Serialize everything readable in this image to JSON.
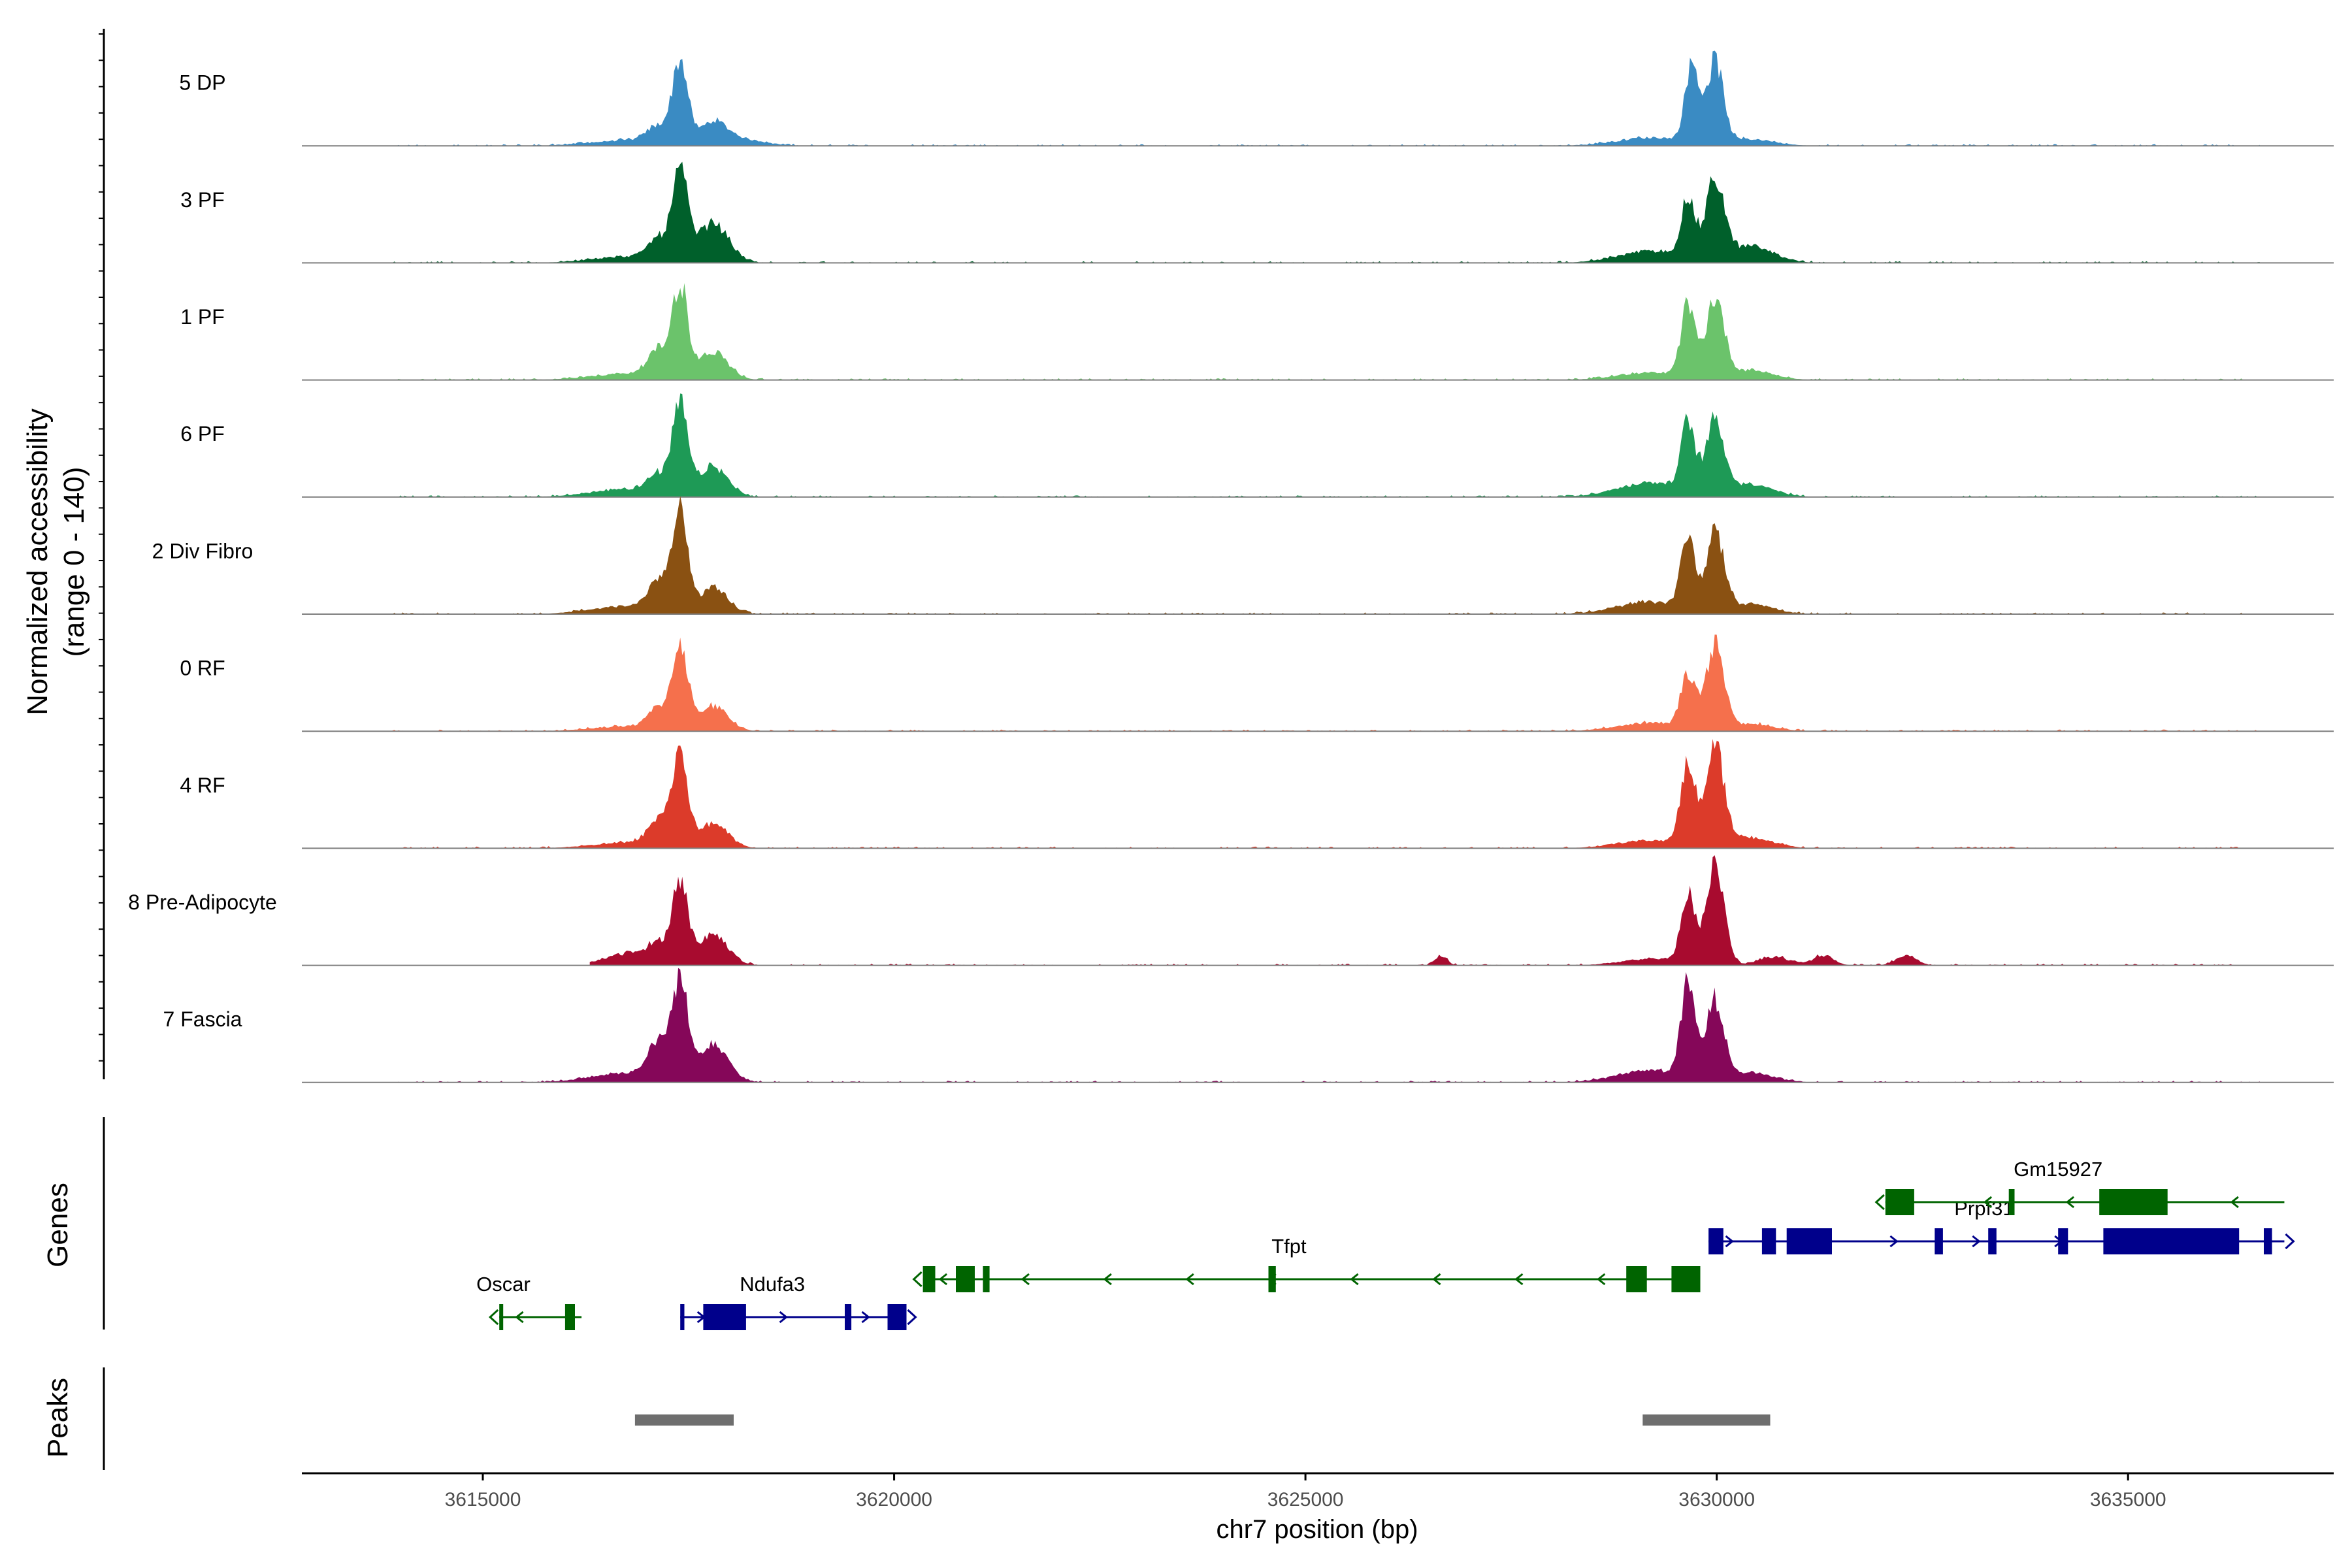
{
  "chart_data": {
    "type": "area",
    "title": "",
    "region": {
      "chromosome": "chr7",
      "start": 3612800,
      "end": 3637500
    },
    "xlabel": "chr7 position (bp)",
    "ylabel_line1": "Normalized accessibility",
    "ylabel_line2": "(range 0 - 140)",
    "ylim": [
      0,
      140
    ],
    "x_ticks": [
      {
        "value": 3615000,
        "label": "3615000"
      },
      {
        "value": 3620000,
        "label": "3620000"
      },
      {
        "value": 3625000,
        "label": "3625000"
      },
      {
        "value": 3630000,
        "label": "3630000"
      },
      {
        "value": 3635000,
        "label": "3635000"
      }
    ],
    "baseline_color": "#7f7f7f",
    "series": [
      {
        "name": "5 DP",
        "color": "#3a8bc3",
        "scale": 1.0,
        "coverage": [
          3613900,
          3636600
        ],
        "peaks": [
          [
            3616800,
            7,
            450
          ],
          [
            3617150,
            20,
            140
          ],
          [
            3617400,
            98,
            90
          ],
          [
            3617800,
            25,
            170
          ],
          [
            3618100,
            8,
            300
          ],
          [
            3629200,
            10,
            400
          ],
          [
            3629700,
            95,
            85
          ],
          [
            3629980,
            100,
            100
          ],
          [
            3630400,
            8,
            300
          ]
        ]
      },
      {
        "name": "3 PF",
        "color": "#00602b",
        "scale": 1.0,
        "coverage": [
          3613900,
          3636600
        ],
        "peaks": [
          [
            3616800,
            8,
            450
          ],
          [
            3617150,
            26,
            130
          ],
          [
            3617400,
            103,
            90
          ],
          [
            3617800,
            48,
            190
          ],
          [
            3629200,
            14,
            400
          ],
          [
            3629650,
            71,
            85
          ],
          [
            3629980,
            96,
            110
          ],
          [
            3630400,
            20,
            280
          ]
        ]
      },
      {
        "name": "1 PF",
        "color": "#6bc36b",
        "scale": 1.0,
        "coverage": [
          3613900,
          3636600
        ],
        "peaks": [
          [
            3616800,
            8,
            450
          ],
          [
            3617150,
            33,
            130
          ],
          [
            3617400,
            110,
            90
          ],
          [
            3617800,
            34,
            180
          ],
          [
            3629200,
            9,
            400
          ],
          [
            3629650,
            86,
            85
          ],
          [
            3629980,
            96,
            110
          ],
          [
            3630400,
            12,
            280
          ]
        ]
      },
      {
        "name": "6 PF",
        "color": "#1e9a56",
        "scale": 1.0,
        "coverage": [
          3613900,
          3636600
        ],
        "peaks": [
          [
            3616800,
            10,
            450
          ],
          [
            3617150,
            22,
            130
          ],
          [
            3617400,
            105,
            90
          ],
          [
            3617800,
            36,
            180
          ],
          [
            3629200,
            18,
            400
          ],
          [
            3629650,
            82,
            85
          ],
          [
            3629980,
            87,
            110
          ],
          [
            3630400,
            16,
            280
          ]
        ]
      },
      {
        "name": "2 Div Fibro",
        "color": "#8a5112",
        "scale": 1.0,
        "coverage": [
          3613900,
          3636600
        ],
        "peaks": [
          [
            3616800,
            10,
            450
          ],
          [
            3617150,
            36,
            130
          ],
          [
            3617400,
            114,
            90
          ],
          [
            3617800,
            30,
            180
          ],
          [
            3629200,
            15,
            400
          ],
          [
            3629650,
            88,
            85
          ],
          [
            3629980,
            93,
            110
          ],
          [
            3630400,
            12,
            280
          ]
        ]
      },
      {
        "name": "0 RF",
        "color": "#f5704c",
        "scale": 1.0,
        "coverage": [
          3613900,
          3636600
        ],
        "peaks": [
          [
            3616800,
            6,
            450
          ],
          [
            3617150,
            26,
            130
          ],
          [
            3617400,
            102,
            90
          ],
          [
            3617800,
            30,
            180
          ],
          [
            3629200,
            10,
            400
          ],
          [
            3629650,
            68,
            85
          ],
          [
            3629980,
            100,
            110
          ],
          [
            3630400,
            9,
            280
          ]
        ]
      },
      {
        "name": "4 RF",
        "color": "#dc3b2a",
        "scale": 1.0,
        "coverage": [
          3613900,
          3636600
        ],
        "peaks": [
          [
            3616800,
            7,
            450
          ],
          [
            3617150,
            33,
            130
          ],
          [
            3617400,
            112,
            90
          ],
          [
            3617800,
            30,
            180
          ],
          [
            3629200,
            10,
            400
          ],
          [
            3629650,
            104,
            85
          ],
          [
            3629980,
            116,
            110
          ],
          [
            3630400,
            13,
            280
          ]
        ]
      },
      {
        "name": "8 Pre-Adipocyte",
        "color": "#a80b2f",
        "scale": 1.0,
        "coverage": [
          3616300,
          3636600
        ],
        "peaks": [
          [
            3616800,
            15,
            300
          ],
          [
            3617150,
            22,
            130
          ],
          [
            3617400,
            100,
            90
          ],
          [
            3617800,
            38,
            180
          ],
          [
            3626650,
            12,
            70
          ],
          [
            3629200,
            8,
            350
          ],
          [
            3629650,
            88,
            85
          ],
          [
            3629980,
            120,
            110
          ],
          [
            3630700,
            10,
            200
          ],
          [
            3631300,
            12,
            120
          ],
          [
            3632300,
            12,
            120
          ]
        ]
      },
      {
        "name": "7 Fascia",
        "color": "#850759",
        "scale": 1.0,
        "coverage": [
          3613900,
          3636600
        ],
        "peaks": [
          [
            3616800,
            12,
            450
          ],
          [
            3617150,
            44,
            130
          ],
          [
            3617400,
            115,
            90
          ],
          [
            3617800,
            48,
            180
          ],
          [
            3629200,
            15,
            400
          ],
          [
            3629650,
            112,
            85
          ],
          [
            3629980,
            96,
            110
          ],
          [
            3630400,
            12,
            280
          ]
        ]
      }
    ],
    "genes_title": "Genes",
    "genes": [
      {
        "name": "Oscar",
        "strand": "-",
        "row": 3,
        "color": "#006400",
        "start": 3615200,
        "end": 3616200,
        "exons": [
          [
            3615200,
            3615220
          ],
          [
            3616000,
            3616120
          ]
        ],
        "label_x": 3615250
      },
      {
        "name": "Ndufa3",
        "strand": "+",
        "row": 3,
        "color": "#00008b",
        "start": 3617400,
        "end": 3620150,
        "exons": [
          [
            3617400,
            3617450
          ],
          [
            3617680,
            3618200
          ],
          [
            3619400,
            3619480
          ],
          [
            3619920,
            3620150
          ]
        ],
        "label_x": 3618520
      },
      {
        "name": "Tfpt",
        "strand": "-",
        "row": 2,
        "color": "#006400",
        "start": 3620350,
        "end": 3629800,
        "exons": [
          [
            3620350,
            3620500
          ],
          [
            3620750,
            3620980
          ],
          [
            3621080,
            3621160
          ],
          [
            3624550,
            3624640
          ],
          [
            3628900,
            3629150
          ],
          [
            3629450,
            3629800
          ]
        ],
        "label_x": 3624800
      },
      {
        "name": "Prpf31",
        "strand": "+",
        "row": 1,
        "color": "#00008b",
        "start": 3629900,
        "end": 3636900,
        "exons": [
          [
            3629900,
            3630080
          ],
          [
            3630550,
            3630720
          ],
          [
            3630850,
            3631400
          ],
          [
            3632650,
            3632750
          ],
          [
            3633300,
            3633400
          ],
          [
            3634150,
            3634270
          ],
          [
            3634700,
            3636350
          ],
          [
            3636650,
            3636750
          ]
        ],
        "label_x": 3633250
      },
      {
        "name": "Gm15927",
        "strand": "-",
        "row": 0,
        "color": "#006400",
        "start": 3632050,
        "end": 3636900,
        "exons": [
          [
            3632050,
            3632400
          ],
          [
            3633550,
            3633620
          ],
          [
            3634650,
            3635480
          ]
        ],
        "label_x": 3634150
      }
    ],
    "peaks_title": "Peaks",
    "peak_regions": [
      [
        3616850,
        3618050
      ],
      [
        3629100,
        3630650
      ]
    ],
    "peak_color": "#6e6e6e"
  }
}
